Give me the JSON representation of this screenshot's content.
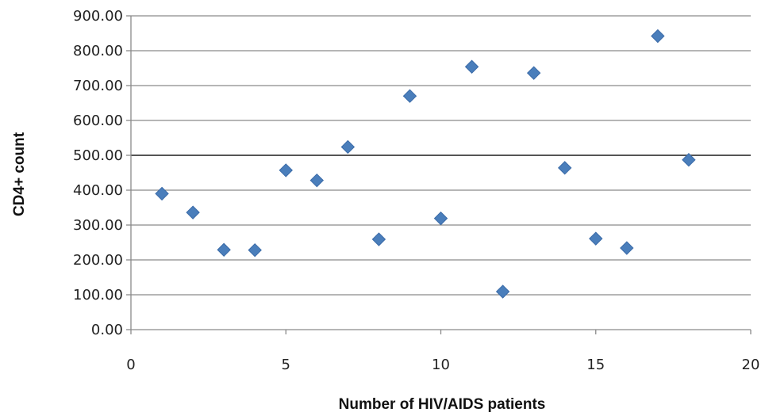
{
  "chart_data": {
    "type": "scatter",
    "xlabel": "Number of HIV/AIDS patients",
    "ylabel": "CD4+ count",
    "xlim": [
      0,
      20
    ],
    "ylim": [
      0,
      900
    ],
    "x_ticks": [
      0,
      5,
      10,
      15,
      20
    ],
    "x_tick_labels": [
      "0",
      "5",
      "10",
      "15",
      "20"
    ],
    "y_ticks": [
      0,
      100,
      200,
      300,
      400,
      500,
      600,
      700,
      800,
      900
    ],
    "y_tick_labels": [
      "0.00",
      "100.00",
      "200.00",
      "300.00",
      "400.00",
      "500.00",
      "600.00",
      "700.00",
      "800.00",
      "900.00"
    ],
    "gridlines": "horizontal",
    "reference_line": 500,
    "legend": "none",
    "colors": {
      "marker": "#4a7ebb",
      "grid": "#8a8a8a",
      "reference_line": "#555555",
      "axis": "#8a8a8a"
    },
    "marker_shape": "diamond",
    "series": [
      {
        "points": [
          {
            "x": 1,
            "y": 390
          },
          {
            "x": 2,
            "y": 336
          },
          {
            "x": 3,
            "y": 229
          },
          {
            "x": 4,
            "y": 228
          },
          {
            "x": 5,
            "y": 457
          },
          {
            "x": 6,
            "y": 428
          },
          {
            "x": 7,
            "y": 524
          },
          {
            "x": 8,
            "y": 259
          },
          {
            "x": 9,
            "y": 670
          },
          {
            "x": 10,
            "y": 319
          },
          {
            "x": 11,
            "y": 754
          },
          {
            "x": 12,
            "y": 109
          },
          {
            "x": 13,
            "y": 736
          },
          {
            "x": 14,
            "y": 464
          },
          {
            "x": 15,
            "y": 261
          },
          {
            "x": 16,
            "y": 234
          },
          {
            "x": 17,
            "y": 842
          },
          {
            "x": 18,
            "y": 487
          }
        ]
      }
    ]
  }
}
